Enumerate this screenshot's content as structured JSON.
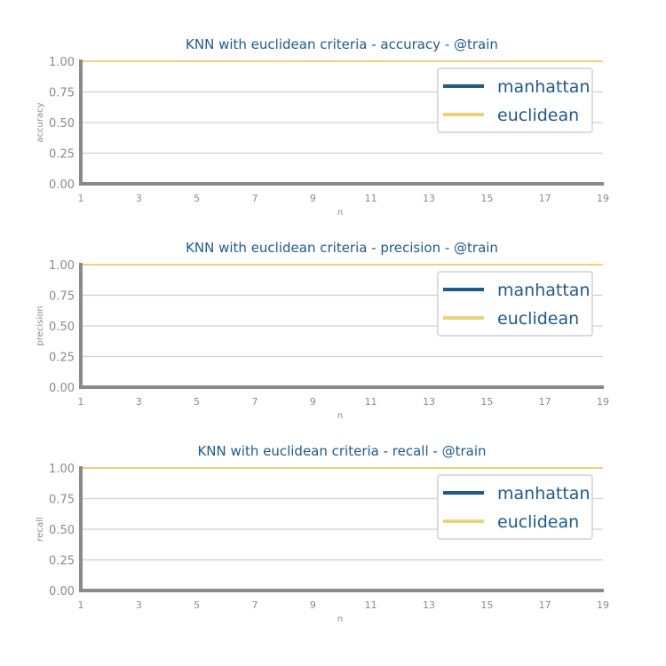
{
  "chart_data": [
    {
      "type": "line",
      "title": "KNN with euclidean criteria - accuracy - @train",
      "xlabel": "n",
      "ylabel": "accuracy",
      "x": [
        1,
        3,
        5,
        7,
        9,
        11,
        13,
        15,
        17,
        19
      ],
      "xticks": [
        "1",
        "3",
        "5",
        "7",
        "9",
        "11",
        "13",
        "15",
        "17",
        "19"
      ],
      "yticks": [
        "0.00",
        "0.25",
        "0.50",
        "0.75",
        "1.00"
      ],
      "xlim": [
        1,
        19
      ],
      "ylim": [
        0,
        1
      ],
      "grid": true,
      "legend_position": "top-right",
      "series": [
        {
          "name": "manhattan",
          "color": "#1f5a8c",
          "values": [
            1,
            1,
            1,
            1,
            1,
            1,
            1,
            1,
            1,
            1
          ]
        },
        {
          "name": "euclidean",
          "color": "#ebd27a",
          "values": [
            1,
            1,
            1,
            1,
            1,
            1,
            1,
            1,
            1,
            1
          ]
        }
      ]
    },
    {
      "type": "line",
      "title": "KNN with euclidean criteria - precision - @train",
      "xlabel": "n",
      "ylabel": "precision",
      "x": [
        1,
        3,
        5,
        7,
        9,
        11,
        13,
        15,
        17,
        19
      ],
      "xticks": [
        "1",
        "3",
        "5",
        "7",
        "9",
        "11",
        "13",
        "15",
        "17",
        "19"
      ],
      "yticks": [
        "0.00",
        "0.25",
        "0.50",
        "0.75",
        "1.00"
      ],
      "xlim": [
        1,
        19
      ],
      "ylim": [
        0,
        1
      ],
      "grid": true,
      "legend_position": "top-right",
      "series": [
        {
          "name": "manhattan",
          "color": "#1f5a8c",
          "values": [
            1,
            1,
            1,
            1,
            1,
            1,
            1,
            1,
            1,
            1
          ]
        },
        {
          "name": "euclidean",
          "color": "#ebd27a",
          "values": [
            1,
            1,
            1,
            1,
            1,
            1,
            1,
            1,
            1,
            1
          ]
        }
      ]
    },
    {
      "type": "line",
      "title": "KNN with euclidean criteria - recall - @train",
      "xlabel": "n",
      "ylabel": "recall",
      "x": [
        1,
        3,
        5,
        7,
        9,
        11,
        13,
        15,
        17,
        19
      ],
      "xticks": [
        "1",
        "3",
        "5",
        "7",
        "9",
        "11",
        "13",
        "15",
        "17",
        "19"
      ],
      "yticks": [
        "0.00",
        "0.25",
        "0.50",
        "0.75",
        "1.00"
      ],
      "xlim": [
        1,
        19
      ],
      "ylim": [
        0,
        1
      ],
      "grid": true,
      "legend_position": "top-right",
      "series": [
        {
          "name": "manhattan",
          "color": "#1f5a8c",
          "values": [
            1,
            1,
            1,
            1,
            1,
            1,
            1,
            1,
            1,
            1
          ]
        },
        {
          "name": "euclidean",
          "color": "#ebd27a",
          "values": [
            1,
            1,
            1,
            1,
            1,
            1,
            1,
            1,
            1,
            1
          ]
        }
      ]
    }
  ]
}
